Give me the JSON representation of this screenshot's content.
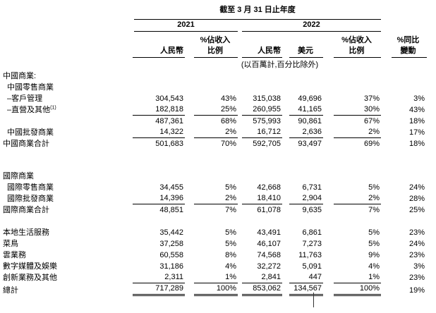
{
  "document": {
    "period_title": "截至 3 月 31 日止年度",
    "unit_note": "(以百萬計,百分比除外)",
    "years": {
      "y2021": "2021",
      "y2022": "2022"
    },
    "columns": {
      "rmb": "人民幣",
      "usd": "美元",
      "pct_of_revenue_line1": "%佔收入",
      "pct_of_revenue_line2": "比例",
      "yoy_line1": "%同比",
      "yoy_line2": "變動"
    },
    "rows": [
      {
        "key": "china-commerce-heading",
        "label": "中國商業:",
        "indent": 0,
        "values": [
          "",
          "",
          "",
          "",
          "",
          ""
        ]
      },
      {
        "key": "china-retail-heading",
        "label": "中國零售商業",
        "indent": 1,
        "values": [
          "",
          "",
          "",
          "",
          "",
          ""
        ]
      },
      {
        "key": "customer-management",
        "label": "–客戶管理",
        "indent": 1,
        "values": [
          "304,543",
          "43%",
          "315,038",
          "49,696",
          "37%",
          "3%"
        ]
      },
      {
        "key": "direct-sales-and-others",
        "label": "–直營及其他",
        "sup": "(1)",
        "indent": 1,
        "rule": "single",
        "values": [
          "182,818",
          "25%",
          "260,955",
          "41,165",
          "30%",
          "43%"
        ]
      },
      {
        "key": "china-retail-subtotal",
        "label": "",
        "indent": 0,
        "values": [
          "487,361",
          "68%",
          "575,993",
          "90,861",
          "67%",
          "18%"
        ]
      },
      {
        "key": "china-wholesale",
        "label": "中國批發商業",
        "indent": 1,
        "rule": "single",
        "values": [
          "14,322",
          "2%",
          "16,712",
          "2,636",
          "2%",
          "17%"
        ]
      },
      {
        "key": "china-commerce-total",
        "label": "中國商業合計",
        "indent": 0,
        "values": [
          "501,683",
          "70%",
          "592,705",
          "93,497",
          "69%",
          "18%"
        ]
      },
      {
        "spacer": 30
      },
      {
        "key": "international-commerce-heading",
        "label": "國際商業",
        "indent": 0,
        "values": [
          "",
          "",
          "",
          "",
          "",
          ""
        ]
      },
      {
        "key": "international-retail",
        "label": "國際零售商業",
        "indent": 1,
        "values": [
          "34,455",
          "5%",
          "42,668",
          "6,731",
          "5%",
          "24%"
        ]
      },
      {
        "key": "international-wholesale",
        "label": "國際批發商業",
        "indent": 1,
        "rule": "single",
        "values": [
          "14,396",
          "2%",
          "18,410",
          "2,904",
          "2%",
          "28%"
        ]
      },
      {
        "key": "international-commerce-total",
        "label": "國際商業合計",
        "indent": 0,
        "values": [
          "48,851",
          "7%",
          "61,078",
          "9,635",
          "7%",
          "25%"
        ]
      },
      {
        "spacer": 16
      },
      {
        "key": "local-consumer-services",
        "label": "本地生活服務",
        "indent": 0,
        "values": [
          "35,442",
          "5%",
          "43,491",
          "6,861",
          "5%",
          "23%"
        ]
      },
      {
        "key": "cainiao",
        "label": "菜鳥",
        "indent": 0,
        "values": [
          "37,258",
          "5%",
          "46,107",
          "7,273",
          "5%",
          "24%"
        ]
      },
      {
        "key": "cloud",
        "label": "雲業務",
        "indent": 0,
        "values": [
          "60,558",
          "8%",
          "74,568",
          "11,763",
          "9%",
          "23%"
        ]
      },
      {
        "key": "digital-media-entertainment",
        "label": "數字媒體及娛樂",
        "indent": 0,
        "values": [
          "31,186",
          "4%",
          "32,272",
          "5,091",
          "4%",
          "3%"
        ]
      },
      {
        "key": "innovation-initiatives",
        "label": "創新業務及其他",
        "indent": 0,
        "rule": "single",
        "values": [
          "2,311",
          "1%",
          "2,841",
          "447",
          "1%",
          "23%"
        ]
      },
      {
        "key": "total",
        "label": "總計",
        "indent": 0,
        "rule": "double",
        "values": [
          "717,289",
          "100%",
          "853,062",
          "134,567",
          "100%",
          "19%"
        ]
      }
    ]
  }
}
